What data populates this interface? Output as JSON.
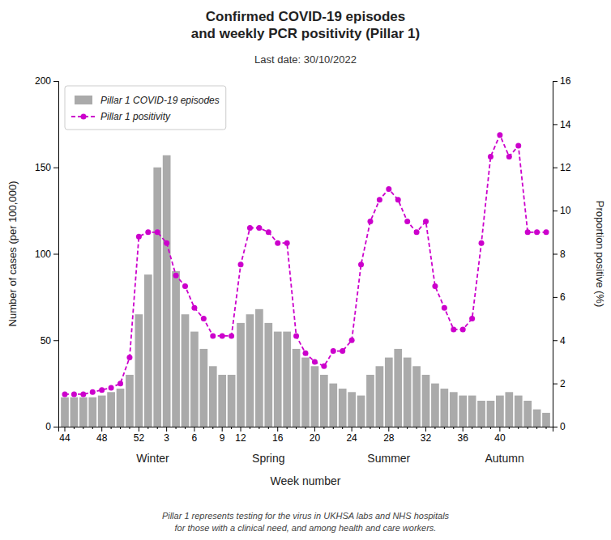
{
  "chart_data": {
    "type": "bar",
    "title": "Confirmed COVID-19 episodes\nand weekly PCR positivity (Pillar 1)",
    "subtitle": "Last date: 30/10/2022",
    "xlabel": "Week number",
    "ylabel": "Number of cases (per 100,000)",
    "y2label": "Proportion positive (%)",
    "footnote": "Pillar 1 represents testing for the virus in UKHSA labs and NHS hospitals\nfor those with a clinical need, and among health and care workers.",
    "categories": [
      "44",
      null,
      null,
      null,
      "48",
      null,
      null,
      null,
      "52",
      null,
      null,
      "3",
      null,
      null,
      "6",
      null,
      null,
      "9",
      null,
      "12",
      null,
      null,
      null,
      "16",
      null,
      null,
      null,
      "20",
      null,
      null,
      null,
      "24",
      null,
      null,
      null,
      "28",
      null,
      null,
      null,
      "32",
      null,
      null,
      null,
      "36",
      null,
      null,
      null,
      "40",
      null,
      null,
      null,
      null,
      null
    ],
    "series": [
      {
        "name": "Pillar 1 COVID-19 episodes",
        "type": "bar",
        "color": "#aaaaaa",
        "values": [
          17,
          17,
          17,
          17,
          18,
          20,
          22,
          30,
          65,
          88,
          150,
          157,
          90,
          65,
          55,
          45,
          35,
          30,
          30,
          60,
          65,
          68,
          60,
          55,
          55,
          45,
          40,
          35,
          30,
          25,
          22,
          20,
          18,
          30,
          35,
          40,
          45,
          40,
          35,
          30,
          25,
          22,
          20,
          18,
          18,
          15,
          15,
          18,
          20,
          18,
          15,
          10,
          8
        ]
      },
      {
        "name": "Pillar 1 positivity",
        "type": "line",
        "color": "#cc00cc",
        "line_style": "dashed",
        "marker": "circle",
        "axis": "y2",
        "values": [
          1.5,
          1.5,
          1.5,
          1.6,
          1.7,
          1.8,
          2.0,
          3.2,
          8.8,
          9.0,
          9.0,
          8.5,
          7.0,
          6.5,
          5.5,
          5.0,
          4.2,
          4.2,
          4.2,
          7.5,
          9.2,
          9.2,
          9.0,
          8.5,
          8.5,
          4.2,
          3.4,
          3.0,
          2.8,
          3.5,
          3.5,
          4.0,
          7.5,
          9.5,
          10.5,
          11.0,
          10.5,
          9.5,
          9.0,
          9.5,
          6.5,
          5.5,
          4.5,
          4.5,
          5.0,
          8.5,
          12.5,
          13.5,
          12.5,
          13.0,
          9.0,
          9.0,
          9.0
        ]
      }
    ],
    "ylim": [
      0,
      200
    ],
    "yticks": [
      0,
      50,
      100,
      150,
      200
    ],
    "y2lim": [
      0,
      16
    ],
    "y2ticks": [
      0,
      2,
      4,
      6,
      8,
      10,
      12,
      14,
      16
    ],
    "annotations": [
      {
        "text": "Winter",
        "x": 9.5
      },
      {
        "text": "Spring",
        "x": 22.0
      },
      {
        "text": "Summer",
        "x": 35.0
      },
      {
        "text": "Autumn",
        "x": 47.5
      }
    ],
    "legend": "upper left",
    "grid": false
  }
}
